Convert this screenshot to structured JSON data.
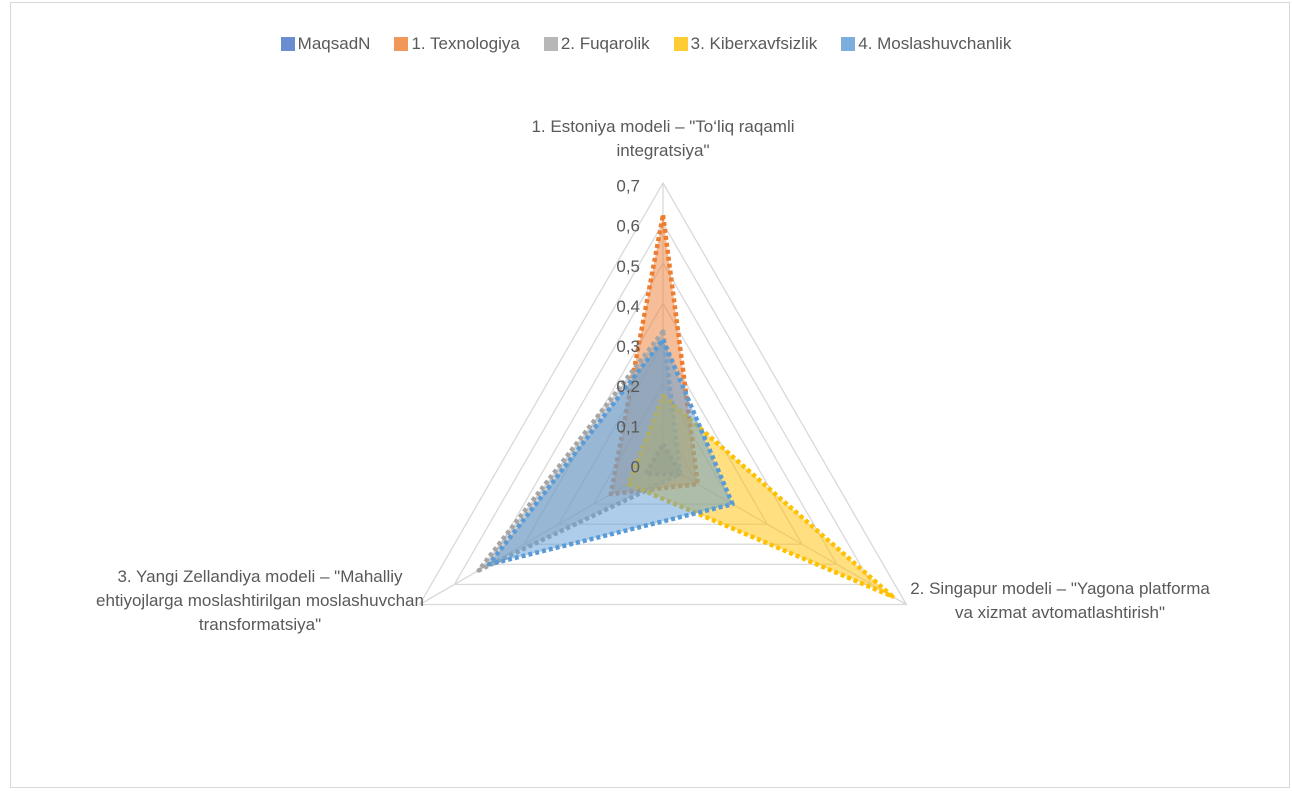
{
  "chart_data": {
    "type": "radar",
    "categories": [
      "1. Estoniya modeli – \"To‘liq raqamli integratsiya\"",
      "2. Singapur modeli – \"Yagona platforma va xizmat avtomatlashtirish\"",
      "3. Yangi Zellandiya modeli – \"Mahalliy ehtiyojlarga moslashtirilgan moslashuvchan transformatsiya\""
    ],
    "series": [
      {
        "name": "MaqsadN",
        "color": "#4472c4",
        "values": [
          0.05,
          0.05,
          0.05
        ]
      },
      {
        "name": "1. Texnologiya",
        "color": "#ed7d31",
        "values": [
          0.62,
          0.1,
          0.15
        ]
      },
      {
        "name": "2. Fuqarolik",
        "color": "#a5a5a5",
        "values": [
          0.33,
          0.05,
          0.53
        ]
      },
      {
        "name": "3. Kiberxavfsizlik",
        "color": "#ffc000",
        "values": [
          0.17,
          0.66,
          0.1
        ]
      },
      {
        "name": "4. Moslashuvchanlik",
        "color": "#5b9bd5",
        "values": [
          0.31,
          0.2,
          0.5
        ]
      }
    ],
    "ylim": [
      0,
      0.7
    ],
    "yticks": [
      0,
      {
        "value": 0.1,
        "label": "0,1"
      },
      {
        "value": 0.2,
        "label": "0,2"
      },
      {
        "value": 0.3,
        "label": "0,3"
      },
      {
        "value": 0.4,
        "label": "0,4"
      },
      {
        "value": 0.5,
        "label": "0,5"
      },
      {
        "value": 0.6,
        "label": "0,6"
      },
      {
        "value": 0.7,
        "label": "0,7"
      }
    ],
    "grid": true,
    "legend": "top"
  }
}
